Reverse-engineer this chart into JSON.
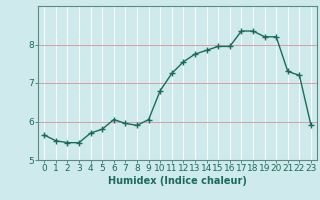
{
  "x": [
    0,
    1,
    2,
    3,
    4,
    5,
    6,
    7,
    8,
    9,
    10,
    11,
    12,
    13,
    14,
    15,
    16,
    17,
    18,
    19,
    20,
    21,
    22,
    23
  ],
  "y": [
    5.65,
    5.5,
    5.45,
    5.45,
    5.7,
    5.8,
    6.05,
    5.95,
    5.9,
    6.05,
    6.8,
    7.25,
    7.55,
    7.75,
    7.85,
    7.95,
    7.95,
    8.35,
    8.35,
    8.2,
    8.2,
    7.3,
    7.2,
    5.9
  ],
  "line_color": "#1a6b5a",
  "marker": "+",
  "marker_size": 4,
  "linewidth": 1.0,
  "xlabel": "Humidex (Indice chaleur)",
  "xlabel_fontsize": 7,
  "xlabel_fontweight": "bold",
  "bg_color": "#ceeaec",
  "vgrid_color": "#ffffff",
  "hgrid_color": "#d4a0a0",
  "tick_color": "#1a6b5a",
  "axis_color": "#5a8a82",
  "ylim": [
    5.0,
    9.0
  ],
  "xlim": [
    -0.5,
    23.5
  ],
  "yticks": [
    5,
    6,
    7,
    8
  ],
  "xticks": [
    0,
    1,
    2,
    3,
    4,
    5,
    6,
    7,
    8,
    9,
    10,
    11,
    12,
    13,
    14,
    15,
    16,
    17,
    18,
    19,
    20,
    21,
    22,
    23
  ],
  "tick_fontsize": 6.5
}
